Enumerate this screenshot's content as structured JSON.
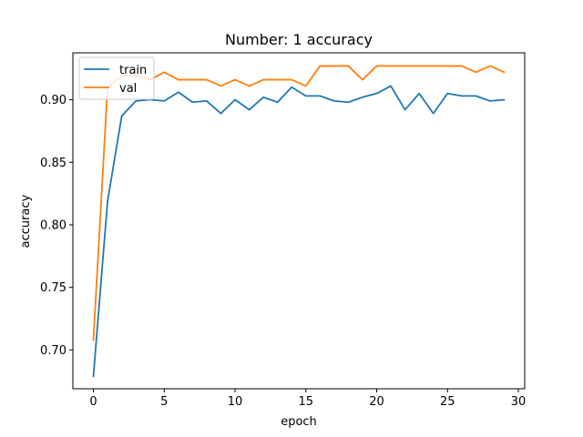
{
  "chart_data": {
    "type": "line",
    "title": "Number: 1 accuracy",
    "xlabel": "epoch",
    "ylabel": "accuracy",
    "xlim": [
      -1.45,
      30.45
    ],
    "ylim": [
      0.669,
      0.9375
    ],
    "xticks": [
      0,
      5,
      10,
      15,
      20,
      25,
      30
    ],
    "yticks": [
      0.7,
      0.75,
      0.8,
      0.85,
      0.9
    ],
    "xtick_labels": [
      "0",
      "5",
      "10",
      "15",
      "20",
      "25",
      "30"
    ],
    "ytick_labels": [
      "0.70",
      "0.75",
      "0.80",
      "0.85",
      "0.90"
    ],
    "grid": false,
    "legend": "top-left",
    "x": [
      0,
      1,
      2,
      3,
      4,
      5,
      6,
      7,
      8,
      9,
      10,
      11,
      12,
      13,
      14,
      15,
      16,
      17,
      18,
      19,
      20,
      21,
      22,
      23,
      24,
      25,
      26,
      27,
      28,
      29
    ],
    "series": [
      {
        "name": "train",
        "color": "#1f77b4",
        "values": [
          0.679,
          0.819,
          0.887,
          0.899,
          0.9,
          0.899,
          0.906,
          0.898,
          0.899,
          0.889,
          0.9,
          0.892,
          0.902,
          0.898,
          0.91,
          0.903,
          0.903,
          0.899,
          0.898,
          0.902,
          0.905,
          0.911,
          0.892,
          0.905,
          0.889,
          0.905,
          0.903,
          0.903,
          0.899,
          0.9
        ]
      },
      {
        "name": "val",
        "color": "#ff7f0e",
        "values": [
          0.708,
          0.91,
          0.919,
          0.919,
          0.916,
          0.922,
          0.916,
          0.916,
          0.916,
          0.911,
          0.916,
          0.911,
          0.916,
          0.916,
          0.916,
          0.911,
          0.927,
          0.927,
          0.927,
          0.916,
          0.927,
          0.927,
          0.927,
          0.927,
          0.927,
          0.927,
          0.927,
          0.922,
          0.927,
          0.922
        ]
      }
    ]
  }
}
